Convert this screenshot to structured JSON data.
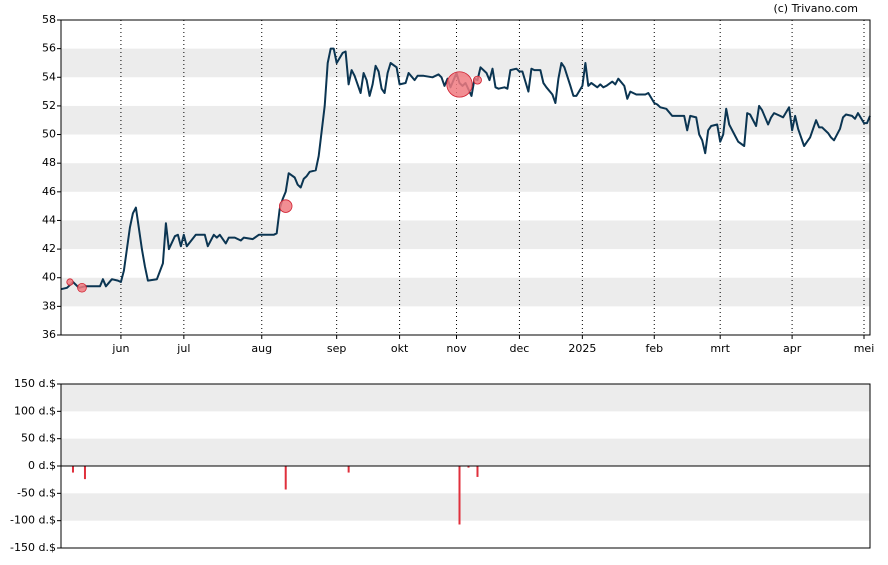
{
  "chart_data": [
    {
      "type": "line",
      "source": "(c) Trivano.com",
      "xlim": [
        0,
        270
      ],
      "ylim": [
        36,
        58
      ],
      "xticks": [
        {
          "value": 20,
          "label": "jun"
        },
        {
          "value": 41,
          "label": "jul"
        },
        {
          "value": 67,
          "label": "aug"
        },
        {
          "value": 92,
          "label": "sep"
        },
        {
          "value": 113,
          "label": "okt"
        },
        {
          "value": 132,
          "label": "nov"
        },
        {
          "value": 153,
          "label": "dec"
        },
        {
          "value": 174,
          "label": "2025"
        },
        {
          "value": 198,
          "label": "feb"
        },
        {
          "value": 220,
          "label": "mrt"
        },
        {
          "value": 244,
          "label": "apr"
        },
        {
          "value": 268,
          "label": "mei"
        }
      ],
      "yticks": [
        36,
        38,
        40,
        42,
        44,
        46,
        48,
        50,
        52,
        54,
        56,
        58
      ],
      "grid": true,
      "bands": true,
      "series": [
        {
          "type": "line",
          "color": "#0b3552",
          "x": [
            0,
            2,
            4,
            6,
            8,
            13,
            14,
            15,
            17,
            19,
            20,
            21,
            23,
            24,
            25,
            27,
            28,
            29,
            32,
            34,
            35,
            36,
            38,
            39,
            40,
            41,
            42,
            45,
            48,
            49,
            51,
            52,
            53,
            55,
            56,
            58,
            60,
            61,
            64,
            66,
            68,
            71,
            72,
            73,
            74,
            75,
            76,
            78,
            79,
            80,
            81,
            82,
            83,
            85,
            86,
            88,
            89,
            90,
            91,
            92,
            94,
            95,
            96,
            97,
            98,
            100,
            101,
            102,
            103,
            104,
            105,
            106,
            107,
            108,
            109,
            110,
            112,
            113,
            115,
            116,
            118,
            119,
            121,
            124,
            126,
            127,
            128,
            129,
            130,
            132,
            133,
            134,
            135,
            137,
            138,
            139,
            140,
            142,
            143,
            144,
            145,
            146,
            148,
            149,
            150,
            152,
            153,
            154,
            156,
            157,
            158,
            160,
            161,
            162,
            164,
            165,
            166,
            167,
            168,
            170,
            171,
            172,
            174,
            175,
            176,
            177,
            179,
            180,
            181,
            182,
            184,
            185,
            186,
            188,
            189,
            190,
            192,
            193,
            195,
            196,
            198,
            199,
            200,
            202,
            204,
            206,
            208,
            209,
            210,
            212,
            213,
            214,
            215,
            216,
            217,
            219,
            220,
            221,
            222,
            223,
            225,
            226,
            228,
            229,
            230,
            232,
            233,
            234,
            236,
            237,
            238,
            240,
            241,
            243,
            244,
            245,
            246,
            248,
            249,
            250,
            252,
            253,
            254,
            256,
            257,
            258,
            260,
            261,
            262,
            264,
            265,
            266,
            268,
            269,
            270
          ],
          "values": [
            39.2,
            39.3,
            39.7,
            39.3,
            39.4,
            39.4,
            39.9,
            39.4,
            39.9,
            39.8,
            39.7,
            40.5,
            43.5,
            44.5,
            44.9,
            42,
            40.8,
            39.8,
            39.9,
            41,
            43.8,
            42,
            42.9,
            43,
            42.2,
            43,
            42.2,
            43,
            43,
            42.2,
            43,
            42.8,
            43,
            42.4,
            42.8,
            42.8,
            42.6,
            42.8,
            42.7,
            43,
            43,
            43,
            43.1,
            44.8,
            45.5,
            46,
            47.3,
            47,
            46.5,
            46.3,
            46.9,
            47.1,
            47.4,
            47.5,
            48.5,
            52,
            55,
            56,
            56,
            55,
            55.7,
            55.8,
            53.5,
            54.5,
            54.1,
            52.9,
            54.3,
            53.8,
            52.7,
            53.5,
            54.8,
            54.4,
            53.2,
            52.9,
            54.3,
            55,
            54.7,
            53.5,
            53.6,
            54.3,
            53.8,
            54.1,
            54.1,
            54,
            54.2,
            54,
            53.4,
            53.9,
            53.3,
            54.3,
            53.6,
            53.4,
            53.6,
            52.7,
            53.9,
            53.8,
            54.7,
            54.3,
            53.8,
            54.6,
            53.3,
            53.2,
            53.3,
            53.2,
            54.5,
            54.6,
            54.4,
            54.4,
            53,
            54.6,
            54.5,
            54.5,
            53.6,
            53.3,
            52.8,
            52.2,
            53.9,
            55,
            54.7,
            53.4,
            52.7,
            52.7,
            53.4,
            55,
            53.4,
            53.6,
            53.3,
            53.5,
            53.3,
            53.4,
            53.7,
            53.5,
            53.9,
            53.4,
            52.5,
            53,
            52.8,
            52.8,
            52.8,
            52.9,
            52.2,
            52.1,
            51.9,
            51.8,
            51.3,
            51.3,
            51.3,
            50.3,
            51.3,
            51.2,
            50,
            49.6,
            48.7,
            50.3,
            50.6,
            50.7,
            49.5,
            50,
            51.8,
            50.7,
            49.9,
            49.5,
            49.2,
            51.5,
            51.4,
            50.6,
            52,
            51.7,
            50.7,
            51.2,
            51.5,
            51.3,
            51.2,
            51.9,
            50.3,
            51.3,
            50.4,
            49.2,
            49.5,
            49.8,
            51,
            50.5,
            50.5,
            50.1,
            49.8,
            49.6,
            50.4,
            51.2,
            51.4,
            51.3,
            51.1,
            51.5,
            50.8,
            50.8,
            51.3
          ]
        },
        {
          "type": "scatter",
          "color": "#f07a80",
          "x": [
            3,
            7,
            75,
            133,
            139
          ],
          "values": [
            39.7,
            39.3,
            45,
            53.5,
            53.8
          ],
          "sizes": [
            12,
            24,
            43,
            107,
            20
          ]
        }
      ]
    },
    {
      "type": "bar",
      "color": "#e0303c",
      "bands": true,
      "xlim": [
        0,
        270
      ],
      "ylim": [
        -150,
        150
      ],
      "yticks": [
        {
          "value": -150,
          "label": "-150 d.$"
        },
        {
          "value": -100,
          "label": "-100 d.$"
        },
        {
          "value": -50,
          "label": "-50 d.$"
        },
        {
          "value": 0,
          "label": "0 d.$"
        },
        {
          "value": 50,
          "label": "50 d.$"
        },
        {
          "value": 100,
          "label": "100 d.$"
        },
        {
          "value": 150,
          "label": "150 d.$"
        }
      ],
      "x": [
        4,
        8,
        75,
        96,
        133,
        136,
        139
      ],
      "values": [
        -12,
        -24,
        -43,
        -12,
        -107,
        -3,
        -20
      ]
    }
  ]
}
